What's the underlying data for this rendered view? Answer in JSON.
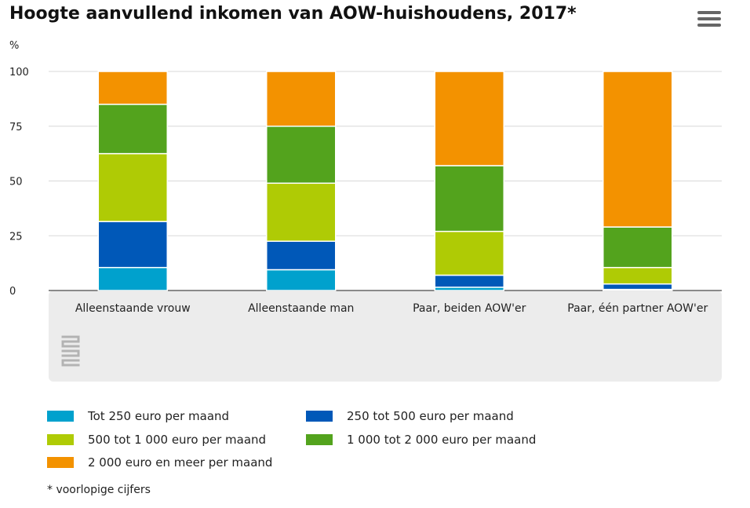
{
  "title": "Hoogte aanvullend inkomen van AOW-huishoudens, 2017*",
  "menu": {
    "icon": "hamburger-menu-icon"
  },
  "chart_data": {
    "type": "bar",
    "stacked": true,
    "yunit": "%",
    "ylim": [
      0,
      100
    ],
    "yticks": [
      0,
      25,
      50,
      75,
      100
    ],
    "grid": true,
    "legend_placement": "bottom",
    "categories": [
      "Alleenstaande vrouw",
      "Alleenstaande man",
      "Paar, beiden AOW'er",
      "Paar, één partner AOW'er"
    ],
    "series": [
      {
        "name": "Tot 250 euro per maand",
        "color": "#00a1cd",
        "values": [
          10.5,
          9.5,
          1.5,
          0.5
        ]
      },
      {
        "name": "250 tot 500 euro per maand",
        "color": "#0058b8",
        "values": [
          21,
          13,
          5.5,
          2.5
        ]
      },
      {
        "name": "500 tot 1 000 euro per maand",
        "color": "#afcb05",
        "values": [
          31,
          26.5,
          20,
          7.5
        ]
      },
      {
        "name": "1 000 tot 2 000 euro per maand",
        "color": "#53a31d",
        "values": [
          22.5,
          26,
          30,
          18.5
        ]
      },
      {
        "name": "2 000 euro en meer per maand",
        "color": "#f39200",
        "values": [
          15,
          25,
          43,
          71
        ]
      }
    ]
  },
  "logo_text": "cbs",
  "footnote": "* voorlopige cijfers"
}
